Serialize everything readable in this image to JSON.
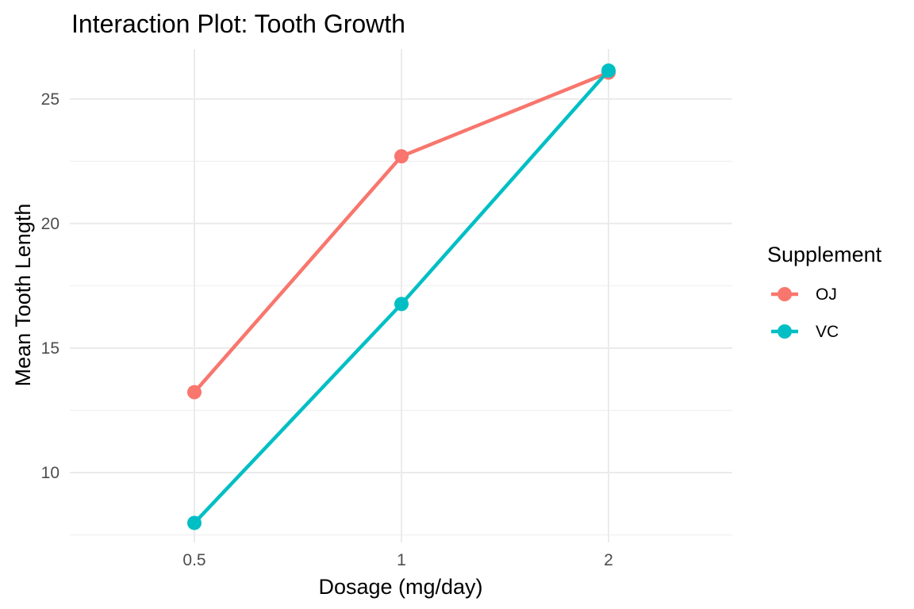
{
  "chart_data": {
    "type": "line",
    "title": "Interaction Plot: Tooth Growth",
    "xlabel": "Dosage (mg/day)",
    "ylabel": "Mean Tooth Length",
    "categories": [
      "0.5",
      "1",
      "2"
    ],
    "ylim": [
      7.2,
      27
    ],
    "y_ticks": [
      10,
      15,
      20,
      25
    ],
    "y_tick_labels": [
      "10",
      "15",
      "20",
      "25"
    ],
    "grid": true,
    "legend": {
      "title": "Supplement",
      "position": "right"
    },
    "series": [
      {
        "name": "OJ",
        "values": [
          13.23,
          22.7,
          26.06
        ],
        "color": "#F8766D"
      },
      {
        "name": "VC",
        "values": [
          7.98,
          16.77,
          26.14
        ],
        "color": "#00BFC4"
      }
    ]
  }
}
